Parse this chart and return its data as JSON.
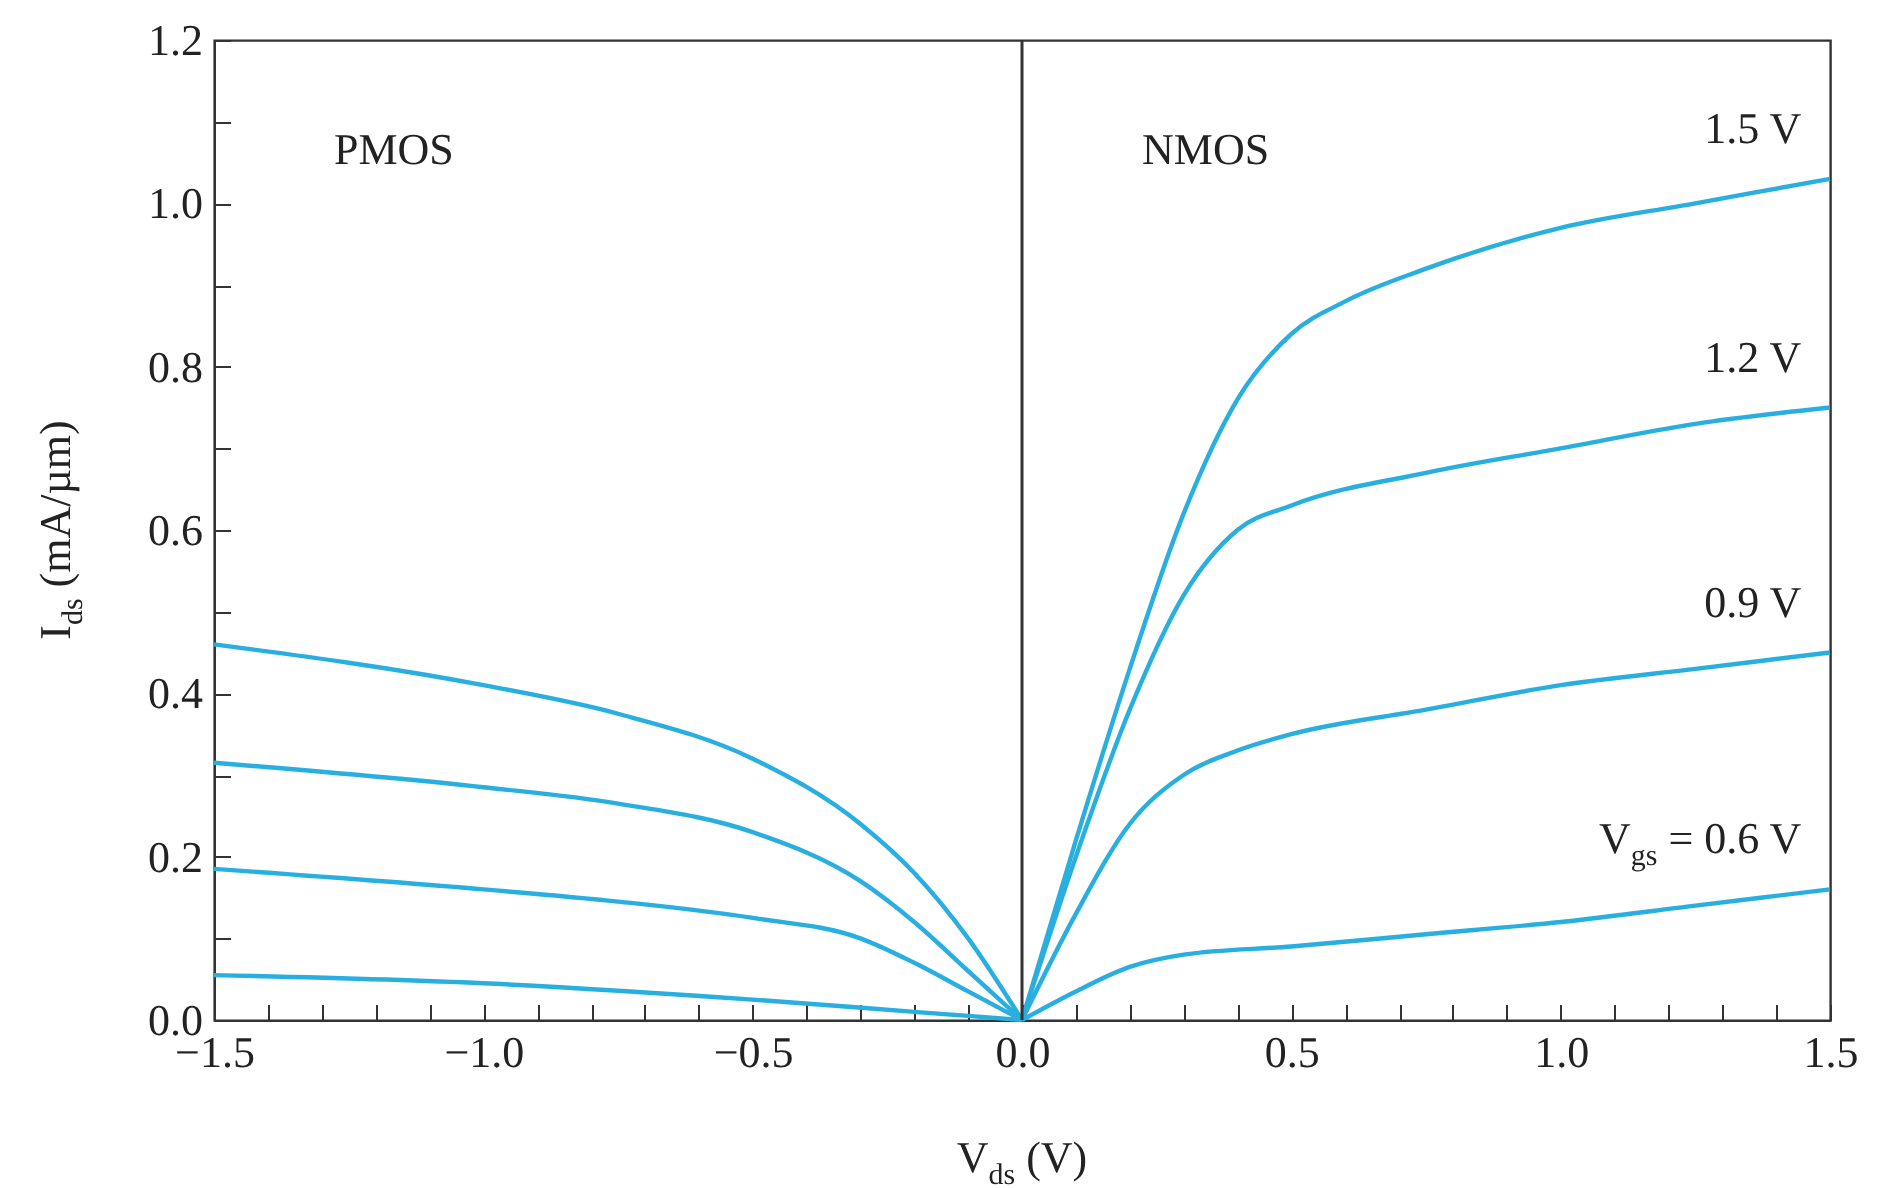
{
  "chart_data": {
    "type": "line",
    "xlabel": "V$_{ds}$ (V)",
    "ylabel": "I$_{ds}$ (mA/µm)",
    "annotations": [
      "PMOS",
      "NMOS"
    ],
    "xlim": [
      -1.5,
      1.5
    ],
    "xticks": [
      {
        "value": -1.5,
        "label": "−1.5"
      },
      {
        "value": -1.4,
        "label": null
      },
      {
        "value": -1.3,
        "label": null
      },
      {
        "value": -1.2,
        "label": null
      },
      {
        "value": -1.1,
        "label": null
      },
      {
        "value": -1.0,
        "label": "−1.0"
      },
      {
        "value": -0.9,
        "label": null
      },
      {
        "value": -0.8,
        "label": null
      },
      {
        "value": -0.7,
        "label": null
      },
      {
        "value": -0.6,
        "label": null
      },
      {
        "value": -0.5,
        "label": "−0.5"
      },
      {
        "value": -0.4,
        "label": null
      },
      {
        "value": -0.3,
        "label": null
      },
      {
        "value": -0.2,
        "label": null
      },
      {
        "value": -0.1,
        "label": null
      },
      {
        "value": 0,
        "label": "0.0"
      },
      {
        "value": 0.1,
        "label": null
      },
      {
        "value": 0.2,
        "label": null
      },
      {
        "value": 0.3,
        "label": null
      },
      {
        "value": 0.4,
        "label": null
      },
      {
        "value": 0.5,
        "label": "0.5"
      },
      {
        "value": 0.6,
        "label": null
      },
      {
        "value": 0.7,
        "label": null
      },
      {
        "value": 0.8,
        "label": null
      },
      {
        "value": 0.9,
        "label": null
      },
      {
        "value": 1.0,
        "label": "1.0"
      },
      {
        "value": 1.1,
        "label": null
      },
      {
        "value": 1.2,
        "label": null
      },
      {
        "value": 1.3,
        "label": null
      },
      {
        "value": 1.4,
        "label": null
      },
      {
        "value": 1.5,
        "label": "1.5"
      }
    ],
    "ylim": [
      0,
      1.2
    ],
    "yticks": [
      {
        "value": 0,
        "label": "0.0"
      },
      {
        "value": 0.1,
        "label": null
      },
      {
        "value": 0.2,
        "label": "0.2"
      },
      {
        "value": 0.3,
        "label": null
      },
      {
        "value": 0.4,
        "label": "0.4"
      },
      {
        "value": 0.5,
        "label": null
      },
      {
        "value": 0.6,
        "label": "0.6"
      },
      {
        "value": 0.7,
        "label": null
      },
      {
        "value": 0.8,
        "label": "0.8"
      },
      {
        "value": 0.9,
        "label": null
      },
      {
        "value": 1.0,
        "label": "1.0"
      },
      {
        "value": 1.1,
        "label": null
      },
      {
        "value": 1.2,
        "label": "1.2"
      }
    ],
    "grid": false,
    "legend": false,
    "marker": "none",
    "line_style": "solid",
    "ref_lines": [
      {
        "axis": "x",
        "value": 0,
        "color": "#333333"
      }
    ],
    "series": [
      {
        "color": "#29aee0",
        "x": [
          -1.5,
          -1.0,
          -0.75,
          -0.5,
          -0.3,
          -0.2,
          -0.1,
          0
        ],
        "values": [
          0.46,
          0.41,
          0.375,
          0.32,
          0.24,
          0.18,
          0.1,
          0
        ]
      },
      {
        "color": "#29aee0",
        "x": [
          -1.5,
          -1.0,
          -0.75,
          -0.5,
          -0.3,
          -0.2,
          -0.1,
          0
        ],
        "values": [
          0.315,
          0.285,
          0.265,
          0.23,
          0.17,
          0.12,
          0.06,
          0
        ]
      },
      {
        "color": "#29aee0",
        "x": [
          -1.5,
          -1.0,
          -0.75,
          -0.5,
          -0.3,
          -0.2,
          -0.1,
          0
        ],
        "values": [
          0.185,
          0.16,
          0.145,
          0.125,
          0.1,
          0.07,
          0.035,
          0
        ]
      },
      {
        "color": "#29aee0",
        "x": [
          -1.5,
          -1.0,
          -0.5,
          -0.2,
          0
        ],
        "values": [
          0.055,
          0.045,
          0.025,
          0.01,
          0
        ]
      },
      {
        "name": "1.5 V",
        "color": "#29aee0",
        "x": [
          0,
          0.1,
          0.2,
          0.3,
          0.4,
          0.5,
          0.6,
          0.75,
          1.0,
          1.25,
          1.5
        ],
        "values": [
          0,
          0.22,
          0.43,
          0.62,
          0.76,
          0.84,
          0.88,
          0.92,
          0.97,
          1.0,
          1.03
        ]
      },
      {
        "name": "1.2 V",
        "color": "#29aee0",
        "x": [
          0,
          0.1,
          0.2,
          0.3,
          0.4,
          0.5,
          0.75,
          1.0,
          1.25,
          1.5
        ],
        "values": [
          0,
          0.2,
          0.38,
          0.52,
          0.6,
          0.63,
          0.67,
          0.7,
          0.73,
          0.75
        ]
      },
      {
        "name": "0.9 V",
        "color": "#29aee0",
        "x": [
          0,
          0.1,
          0.2,
          0.3,
          0.4,
          0.5,
          0.75,
          1.0,
          1.25,
          1.5
        ],
        "values": [
          0,
          0.13,
          0.24,
          0.3,
          0.33,
          0.35,
          0.38,
          0.41,
          0.43,
          0.45
        ]
      },
      {
        "name": "V$_{gs}$ = 0.6 V",
        "color": "#29aee0",
        "x": [
          0,
          0.1,
          0.2,
          0.3,
          0.5,
          0.75,
          1.0,
          1.25,
          1.5
        ],
        "values": [
          0,
          0.035,
          0.065,
          0.08,
          0.09,
          0.105,
          0.12,
          0.14,
          0.16
        ]
      }
    ]
  }
}
